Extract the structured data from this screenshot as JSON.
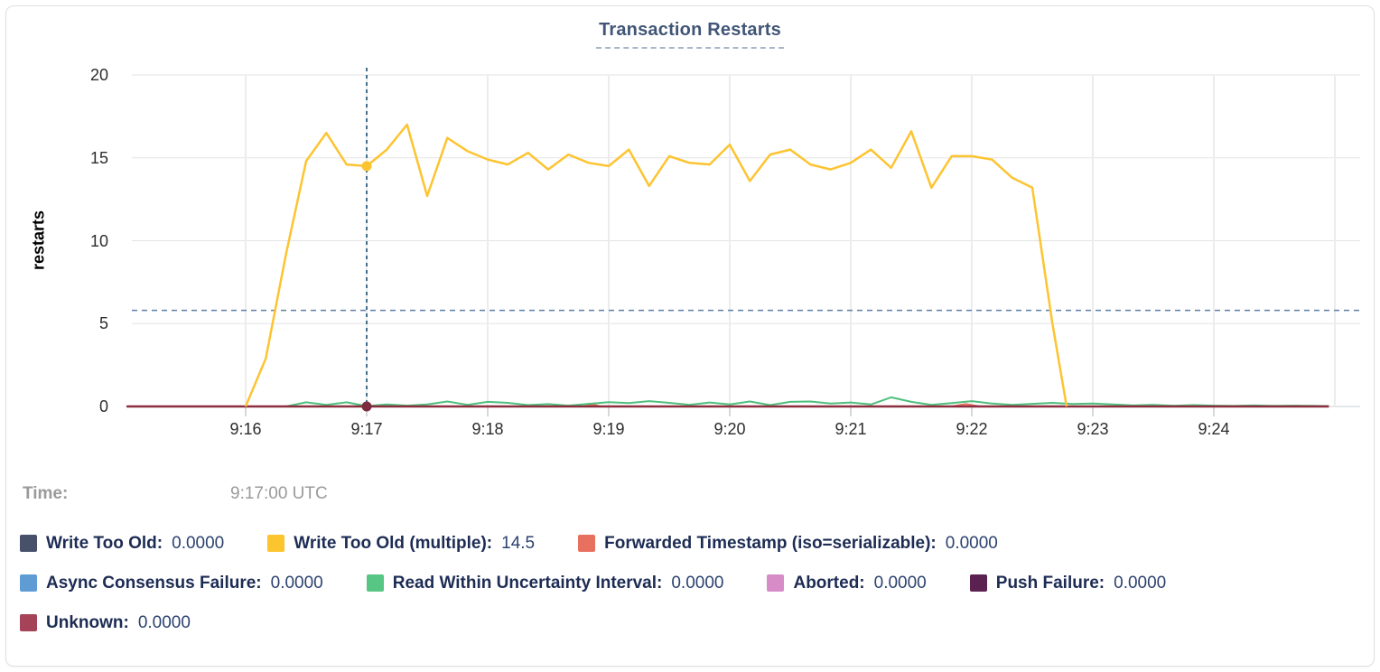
{
  "tooltip": {
    "time_label": "Time:",
    "time_value": "9:17:00 UTC"
  },
  "chart_data": {
    "type": "line",
    "title": "Transaction Restarts",
    "ylabel": "restarts",
    "ylim": [
      0,
      20
    ],
    "y_ticks": [
      0,
      5,
      10,
      15,
      20
    ],
    "x_ticks": [
      "9:16",
      "9:17",
      "9:18",
      "9:19",
      "9:20",
      "9:21",
      "9:22",
      "9:23",
      "9:24"
    ],
    "grid": true,
    "legend_position": "bottom",
    "guideline_value": 5.8,
    "hover": {
      "time": "9:17:00 UTC",
      "x_tick": "9:17",
      "markers": [
        {
          "series": "Write Too Old (multiple)",
          "value": 14.5
        },
        {
          "series": "Unknown",
          "value": 0
        }
      ]
    },
    "series": [
      {
        "name": "Write Too Old",
        "color": "#47526a",
        "value_label": "0.0000",
        "points": [
          [
            1,
            0
          ],
          [
            597,
            0
          ]
        ]
      },
      {
        "name": "Write Too Old (multiple)",
        "color": "#fcc42d",
        "line_color": "#fdc431",
        "value_label": "14.5",
        "points": [
          [
            60,
            0
          ],
          [
            70,
            2.9
          ],
          [
            80,
            9.2
          ],
          [
            90,
            14.8
          ],
          [
            100,
            16.5
          ],
          [
            110,
            14.6
          ],
          [
            120,
            14.5
          ],
          [
            130,
            15.5
          ],
          [
            140,
            17
          ],
          [
            150,
            12.7
          ],
          [
            160,
            16.2
          ],
          [
            170,
            15.4
          ],
          [
            180,
            14.9
          ],
          [
            190,
            14.6
          ],
          [
            200,
            15.3
          ],
          [
            210,
            14.3
          ],
          [
            220,
            15.2
          ],
          [
            230,
            14.7
          ],
          [
            240,
            14.5
          ],
          [
            250,
            15.5
          ],
          [
            260,
            13.3
          ],
          [
            270,
            15.1
          ],
          [
            280,
            14.7
          ],
          [
            290,
            14.6
          ],
          [
            300,
            15.8
          ],
          [
            310,
            13.6
          ],
          [
            320,
            15.2
          ],
          [
            330,
            15.5
          ],
          [
            340,
            14.6
          ],
          [
            350,
            14.3
          ],
          [
            360,
            14.7
          ],
          [
            370,
            15.5
          ],
          [
            380,
            14.4
          ],
          [
            390,
            16.6
          ],
          [
            400,
            13.2
          ],
          [
            410,
            15.1
          ],
          [
            420,
            15.1
          ],
          [
            430,
            14.9
          ],
          [
            440,
            13.8
          ],
          [
            450,
            13.2
          ],
          [
            460,
            5
          ],
          [
            467,
            0
          ]
        ]
      },
      {
        "name": "Forwarded Timestamp (iso=serializable)",
        "color": "#e8705e",
        "value_label": "0.0000",
        "points": [
          [
            1,
            0
          ],
          [
            228,
            0
          ],
          [
            232,
            0.12
          ],
          [
            236,
            0
          ],
          [
            410,
            0
          ],
          [
            417,
            0.14
          ],
          [
            424,
            0
          ],
          [
            597,
            0
          ]
        ]
      },
      {
        "name": "Async Consensus Failure",
        "color": "#5f9cd4",
        "value_label": "0.0000",
        "points": [
          [
            1,
            0
          ],
          [
            597,
            0
          ]
        ]
      },
      {
        "name": "Read Within Uncertainty Interval",
        "color": "#57c584",
        "line_color": "#4fbf7d",
        "value_label": "0.0000",
        "points": [
          [
            80,
            0
          ],
          [
            90,
            0.25
          ],
          [
            100,
            0.1
          ],
          [
            110,
            0.25
          ],
          [
            120,
            0.02
          ],
          [
            130,
            0.12
          ],
          [
            140,
            0.05
          ],
          [
            150,
            0.12
          ],
          [
            160,
            0.3
          ],
          [
            170,
            0.1
          ],
          [
            180,
            0.28
          ],
          [
            190,
            0.22
          ],
          [
            200,
            0.08
          ],
          [
            210,
            0.14
          ],
          [
            220,
            0.05
          ],
          [
            230,
            0.16
          ],
          [
            240,
            0.26
          ],
          [
            250,
            0.2
          ],
          [
            260,
            0.32
          ],
          [
            270,
            0.22
          ],
          [
            280,
            0.1
          ],
          [
            290,
            0.24
          ],
          [
            300,
            0.12
          ],
          [
            310,
            0.3
          ],
          [
            320,
            0.08
          ],
          [
            330,
            0.28
          ],
          [
            340,
            0.3
          ],
          [
            350,
            0.18
          ],
          [
            360,
            0.24
          ],
          [
            370,
            0.12
          ],
          [
            380,
            0.55
          ],
          [
            390,
            0.28
          ],
          [
            400,
            0.1
          ],
          [
            410,
            0.2
          ],
          [
            420,
            0.32
          ],
          [
            430,
            0.18
          ],
          [
            440,
            0.1
          ],
          [
            450,
            0.16
          ],
          [
            460,
            0.22
          ],
          [
            470,
            0.15
          ],
          [
            480,
            0.18
          ],
          [
            490,
            0.12
          ],
          [
            500,
            0.06
          ],
          [
            510,
            0.1
          ],
          [
            520,
            0.04
          ],
          [
            530,
            0.08
          ],
          [
            540,
            0.05
          ],
          [
            550,
            0.03
          ],
          [
            560,
            0.06
          ],
          [
            570,
            0.03
          ],
          [
            580,
            0.05
          ],
          [
            590,
            0.03
          ],
          [
            597,
            0.02
          ]
        ]
      },
      {
        "name": "Aborted",
        "color": "#d78cc7",
        "value_label": "0.0000",
        "points": [
          [
            1,
            0
          ],
          [
            597,
            0
          ]
        ]
      },
      {
        "name": "Push Failure",
        "color": "#5b2150",
        "value_label": "0.0000",
        "points": [
          [
            1,
            0
          ],
          [
            597,
            0
          ]
        ]
      },
      {
        "name": "Unknown",
        "color": "#a54459",
        "line_color": "#8c2e3f",
        "value_label": "0.0000",
        "points": [
          [
            1,
            0
          ],
          [
            597,
            0
          ]
        ]
      }
    ]
  }
}
